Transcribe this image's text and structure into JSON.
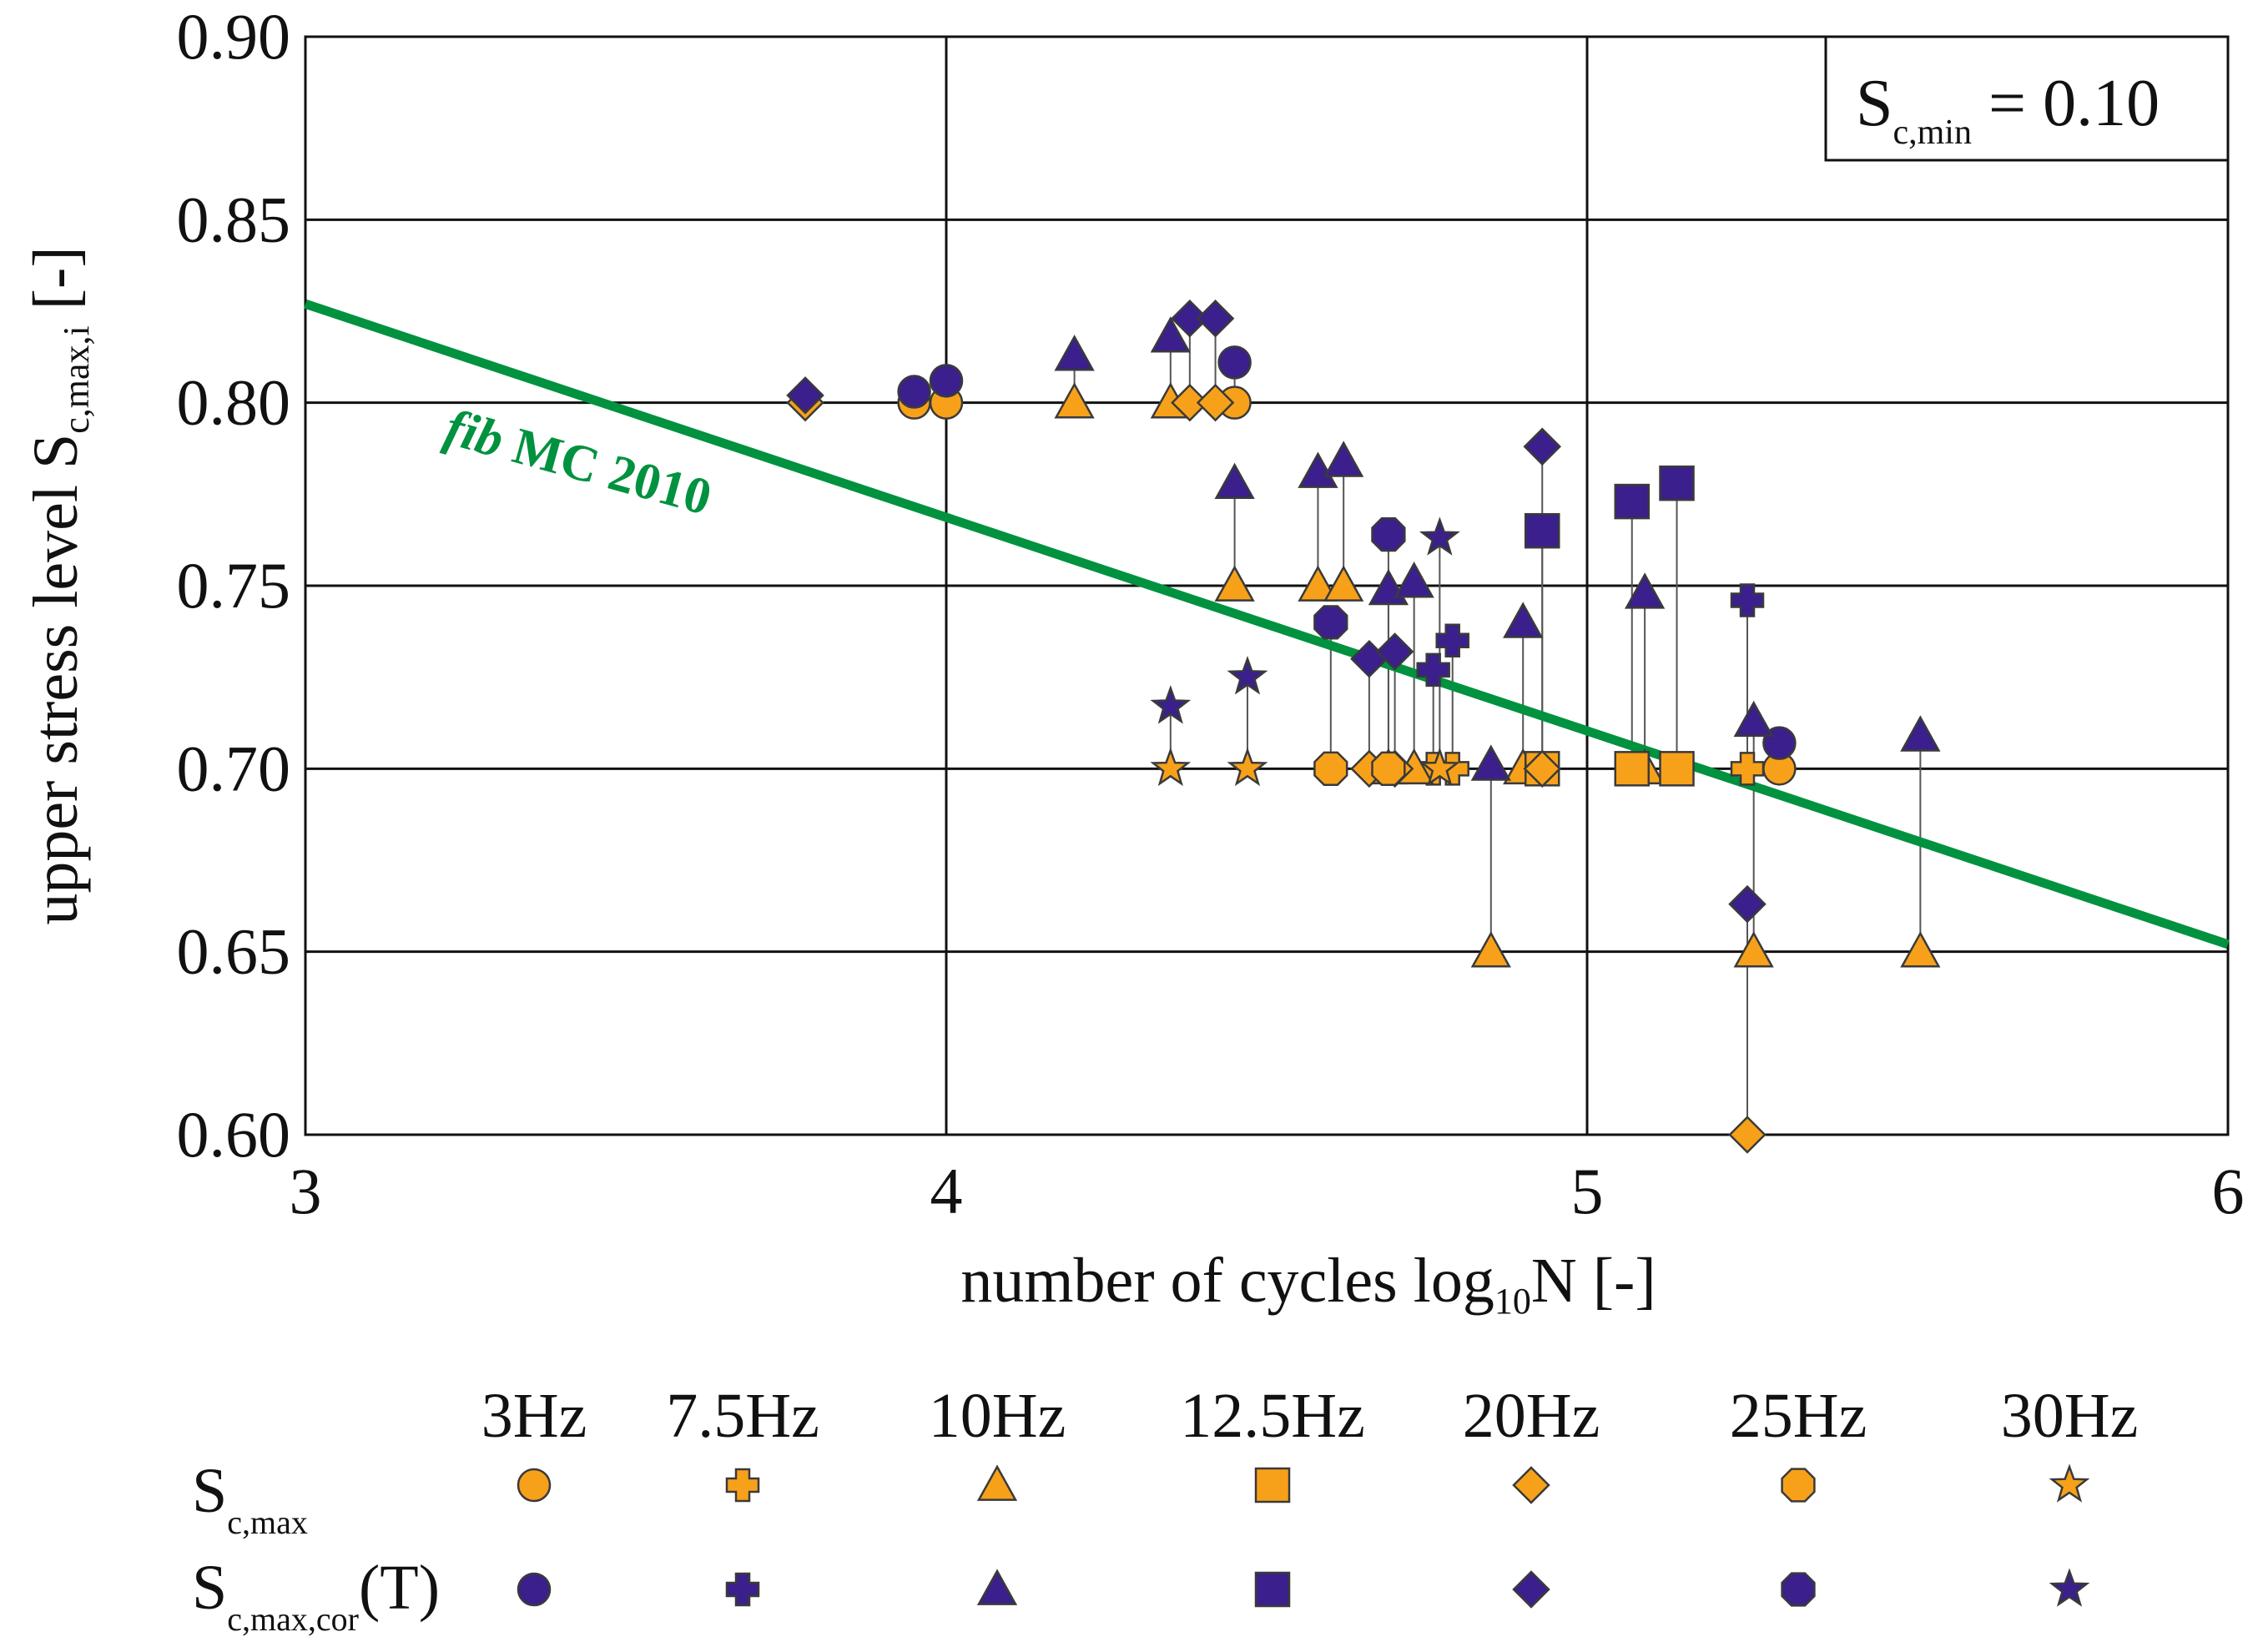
{
  "chart_data": {
    "type": "scatter",
    "title": "",
    "xlabel": {
      "main": "number of cycles log",
      "sub": "10",
      "tail": "N [-]"
    },
    "ylabel": {
      "main": "upper stress level S",
      "sub": "c,max,i",
      "tail": " [-]"
    },
    "xlim": [
      3,
      6
    ],
    "ylim": [
      0.6,
      0.9
    ],
    "xticks": [
      3,
      4,
      5,
      6
    ],
    "xtick_labels": [
      "3",
      "4",
      "5",
      "6"
    ],
    "yticks": [
      0.6,
      0.65,
      0.7,
      0.75,
      0.8,
      0.85,
      0.9
    ],
    "ytick_labels": [
      "0.60",
      "0.65",
      "0.70",
      "0.75",
      "0.80",
      "0.85",
      "0.90"
    ],
    "grid": true,
    "annotation_box": {
      "main": "S",
      "sub": "c,min",
      "tail": " = 0.10"
    },
    "reference_line": {
      "label_italic": "fib",
      "label_rest": " MC 2010",
      "x": [
        3,
        6
      ],
      "y": [
        0.827,
        0.652
      ],
      "color": "#00923f"
    },
    "colors": {
      "orange": "#f7a11a",
      "purple": "#3b1f8c",
      "green": "#00923f",
      "stem": "#555555"
    },
    "legend": {
      "row_labels": [
        {
          "main": "S",
          "sub": "c,max",
          "tail": ""
        },
        {
          "main": "S",
          "sub": "c,max,cor",
          "tail": "(T)"
        }
      ],
      "frequencies": [
        "3Hz",
        "7.5Hz",
        "10Hz",
        "12.5Hz",
        "20Hz",
        "25Hz",
        "30Hz"
      ],
      "markers": [
        "circle",
        "cross",
        "triangle",
        "square",
        "diamond",
        "octagon",
        "star"
      ]
    },
    "series": [
      {
        "name": "3Hz",
        "marker": "circle",
        "points": [
          {
            "x": 3.95,
            "y": 0.8,
            "y_cor": 0.803
          },
          {
            "x": 4.0,
            "y": 0.8,
            "y_cor": 0.806
          },
          {
            "x": 4.45,
            "y": 0.8,
            "y_cor": 0.811
          },
          {
            "x": 5.3,
            "y": 0.7,
            "y_cor": 0.707
          }
        ]
      },
      {
        "name": "7.5Hz",
        "marker": "cross",
        "points": [
          {
            "x": 4.76,
            "y": 0.7,
            "y_cor": 0.727
          },
          {
            "x": 4.79,
            "y": 0.7,
            "y_cor": 0.735
          },
          {
            "x": 5.25,
            "y": 0.7,
            "y_cor": 0.746
          }
        ]
      },
      {
        "name": "10Hz",
        "marker": "triangle",
        "points": [
          {
            "x": 4.2,
            "y": 0.8,
            "y_cor": 0.813
          },
          {
            "x": 4.35,
            "y": 0.8,
            "y_cor": 0.818
          },
          {
            "x": 4.45,
            "y": 0.75,
            "y_cor": 0.778
          },
          {
            "x": 4.58,
            "y": 0.75,
            "y_cor": 0.781
          },
          {
            "x": 4.62,
            "y": 0.75,
            "y_cor": 0.784
          },
          {
            "x": 4.69,
            "y": 0.7,
            "y_cor": 0.749
          },
          {
            "x": 4.73,
            "y": 0.7,
            "y_cor": 0.751
          },
          {
            "x": 4.85,
            "y": 0.65,
            "y_cor": 0.701
          },
          {
            "x": 4.9,
            "y": 0.7,
            "y_cor": 0.74
          },
          {
            "x": 5.09,
            "y": 0.7,
            "y_cor": 0.748
          },
          {
            "x": 5.26,
            "y": 0.65,
            "y_cor": 0.713
          },
          {
            "x": 5.52,
            "y": 0.65,
            "y_cor": 0.709
          }
        ]
      },
      {
        "name": "12.5Hz",
        "marker": "square",
        "points": [
          {
            "x": 4.93,
            "y": 0.7,
            "y_cor": 0.765
          },
          {
            "x": 5.07,
            "y": 0.7,
            "y_cor": 0.773
          },
          {
            "x": 5.14,
            "y": 0.7,
            "y_cor": 0.778
          }
        ]
      },
      {
        "name": "20Hz",
        "marker": "diamond",
        "points": [
          {
            "x": 3.78,
            "y": 0.8,
            "y_cor": 0.802
          },
          {
            "x": 4.38,
            "y": 0.8,
            "y_cor": 0.823
          },
          {
            "x": 4.42,
            "y": 0.8,
            "y_cor": 0.823
          },
          {
            "x": 4.66,
            "y": 0.7,
            "y_cor": 0.73
          },
          {
            "x": 4.7,
            "y": 0.7,
            "y_cor": 0.732
          },
          {
            "x": 4.93,
            "y": 0.7,
            "y_cor": 0.788
          },
          {
            "x": 5.25,
            "y": 0.6,
            "y_cor": 0.663
          }
        ]
      },
      {
        "name": "25Hz",
        "marker": "octagon",
        "points": [
          {
            "x": 4.6,
            "y": 0.7,
            "y_cor": 0.74
          },
          {
            "x": 4.69,
            "y": 0.7,
            "y_cor": 0.764
          }
        ]
      },
      {
        "name": "30Hz",
        "marker": "star",
        "points": [
          {
            "x": 4.35,
            "y": 0.7,
            "y_cor": 0.717
          },
          {
            "x": 4.47,
            "y": 0.7,
            "y_cor": 0.725
          },
          {
            "x": 4.77,
            "y": 0.7,
            "y_cor": 0.763
          }
        ]
      }
    ]
  }
}
